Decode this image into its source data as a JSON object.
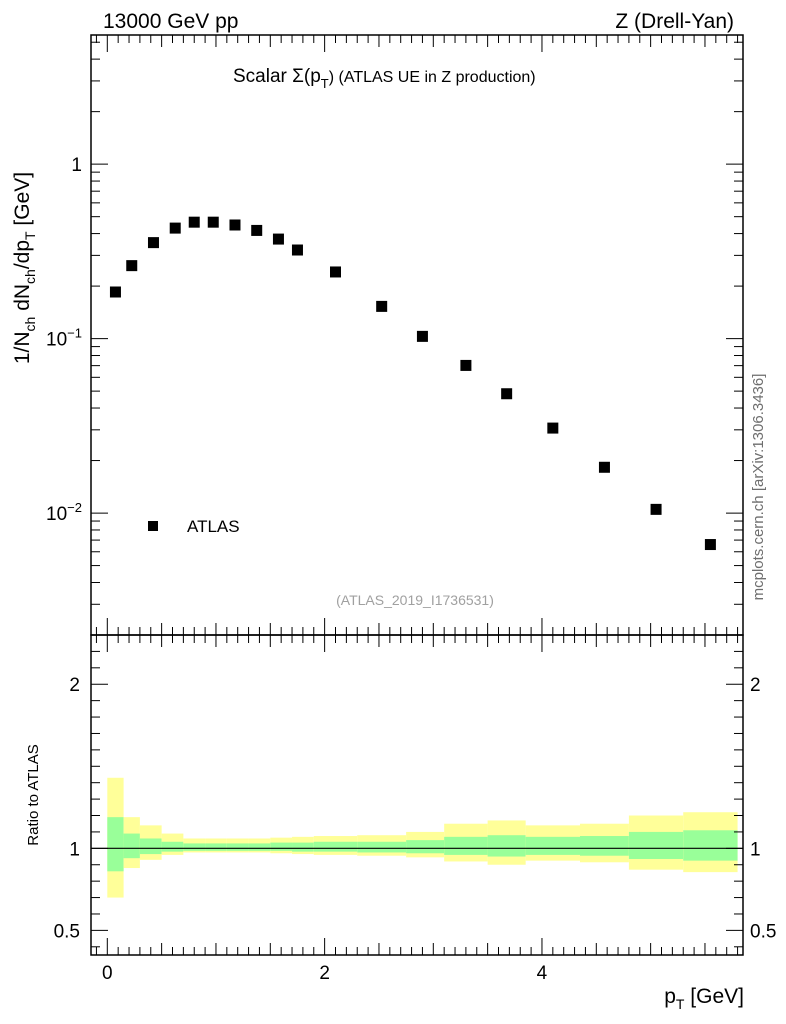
{
  "header": {
    "energy_label": "13000 GeV pp",
    "process_label": "Z (Drell-Yan)"
  },
  "sidebar": {
    "credit": "mcplots.cern.ch [arXiv:1306.3436]"
  },
  "chart_data": [
    {
      "type": "scatter",
      "title": "Scalar Σ(p_T) (ATLAS UE in Z production)",
      "title_parts": {
        "prefix": "Scalar Σ(p",
        "sub": "T",
        "suffix": ") (ATLAS UE in Z production)"
      },
      "analysis_label": "(ATLAS_2019_I1736531)",
      "yscale": "log",
      "ylim": [
        0.002,
        5.5
      ],
      "xlim": [
        -0.15,
        5.85
      ],
      "ylabel": "1/N_ch dN_ch/dp_T [GeV]",
      "ylabel_parts": {
        "a": "1/N",
        "b": "ch",
        "c": " dN",
        "d": "ch",
        "e": "/dp",
        "f": "T",
        "g": " [GeV]"
      },
      "ytick_labels": [
        {
          "value": 1,
          "base": "1",
          "exp": ""
        },
        {
          "value": 0.1,
          "base": "10",
          "exp": "−1"
        },
        {
          "value": 0.01,
          "base": "10",
          "exp": "−2"
        }
      ],
      "legend": {
        "position": "lower-left",
        "entries": [
          "ATLAS"
        ]
      },
      "series": [
        {
          "name": "ATLAS",
          "x": [
            0.075,
            0.225,
            0.425,
            0.625,
            0.8,
            0.975,
            1.175,
            1.375,
            1.575,
            1.75,
            2.1,
            2.525,
            2.9,
            3.3,
            3.675,
            4.1,
            4.575,
            5.05,
            5.55
          ],
          "y": [
            0.185,
            0.262,
            0.355,
            0.43,
            0.465,
            0.465,
            0.448,
            0.417,
            0.372,
            0.322,
            0.241,
            0.153,
            0.103,
            0.0702,
            0.0483,
            0.0307,
            0.0183,
            0.0105,
            0.0066
          ]
        }
      ]
    },
    {
      "type": "area",
      "title": "",
      "ylabel": "Ratio to ATLAS",
      "xlabel": "p_T [GeV]",
      "xlabel_parts": {
        "a": "p",
        "b": "T",
        "c": " [GeV]"
      },
      "xlim": [
        -0.15,
        5.85
      ],
      "ylim": [
        0.35,
        2.3
      ],
      "yticks": [
        0.5,
        1,
        2
      ],
      "ytick_labels": [
        "0.5",
        "1",
        "2"
      ],
      "xticks": [
        0,
        2,
        4
      ],
      "xtick_labels": [
        "0",
        "2",
        "4"
      ],
      "reference_line": 1,
      "bands": {
        "bin_edges": [
          0,
          0.15,
          0.3,
          0.5,
          0.7,
          0.9,
          1.1,
          1.3,
          1.5,
          1.7,
          1.9,
          2.3,
          2.75,
          3.1,
          3.5,
          3.85,
          4.35,
          4.8,
          5.3,
          5.8
        ],
        "outer_low": [
          0.7,
          0.88,
          0.93,
          0.96,
          0.975,
          0.975,
          0.975,
          0.975,
          0.97,
          0.965,
          0.96,
          0.955,
          0.945,
          0.92,
          0.9,
          0.925,
          0.915,
          0.87,
          0.855
        ],
        "outer_high": [
          1.43,
          1.19,
          1.14,
          1.09,
          1.06,
          1.06,
          1.06,
          1.06,
          1.065,
          1.07,
          1.075,
          1.08,
          1.1,
          1.15,
          1.17,
          1.14,
          1.15,
          1.2,
          1.22
        ],
        "inner_low": [
          0.86,
          0.94,
          0.965,
          0.98,
          0.985,
          0.985,
          0.985,
          0.985,
          0.985,
          0.98,
          0.98,
          0.975,
          0.97,
          0.96,
          0.95,
          0.96,
          0.955,
          0.935,
          0.925
        ],
        "inner_high": [
          1.19,
          1.09,
          1.06,
          1.04,
          1.03,
          1.03,
          1.03,
          1.03,
          1.035,
          1.035,
          1.04,
          1.04,
          1.05,
          1.07,
          1.08,
          1.07,
          1.075,
          1.1,
          1.11
        ],
        "outer_color": "#ffff99",
        "inner_color": "#99ff99"
      }
    }
  ]
}
